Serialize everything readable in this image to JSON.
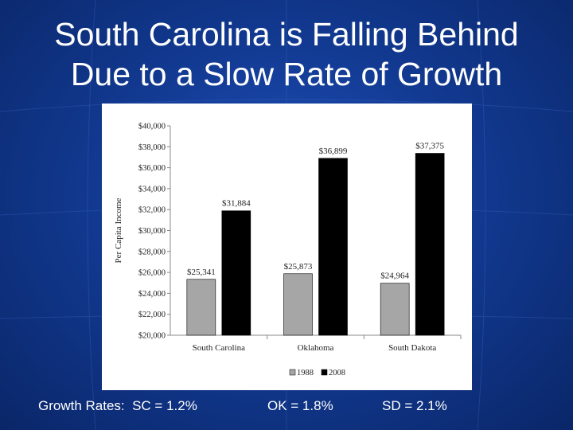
{
  "slide": {
    "title_line1": "South Carolina is Falling Behind",
    "title_line2": "Due to a Slow Rate of Growth"
  },
  "footer": {
    "growth_label": "Growth Rates:  SC = 1.2%",
    "ok_rate": "OK = 1.8%",
    "sd_rate": "SD = 2.1%"
  },
  "colors": {
    "background": "#123a92",
    "title_text": "#ffffff",
    "series_1988": "#a6a6a6",
    "series_2008": "#000000"
  },
  "chart_data": {
    "type": "bar",
    "categories": [
      "South Carolina",
      "Oklahoma",
      "South Dakota"
    ],
    "series": [
      {
        "name": "1988",
        "values": [
          25341,
          25873,
          24964
        ],
        "labels": [
          "$25,341",
          "$25,873",
          "$24,964"
        ]
      },
      {
        "name": "2008",
        "values": [
          31884,
          36899,
          37375
        ],
        "labels": [
          "$31,884",
          "$36,899",
          "$37,375"
        ]
      }
    ],
    "ylabel": "Per Capita Income",
    "ylim": [
      20000,
      40000
    ],
    "yticks": [
      20000,
      22000,
      24000,
      26000,
      28000,
      30000,
      32000,
      34000,
      36000,
      38000,
      40000
    ],
    "ytick_labels": [
      "$20,000",
      "$22,000",
      "$24,000",
      "$26,000",
      "$28,000",
      "$30,000",
      "$32,000",
      "$34,000",
      "$36,000",
      "$38,000",
      "$40,000"
    ],
    "legend_position": "bottom",
    "grid": false
  }
}
